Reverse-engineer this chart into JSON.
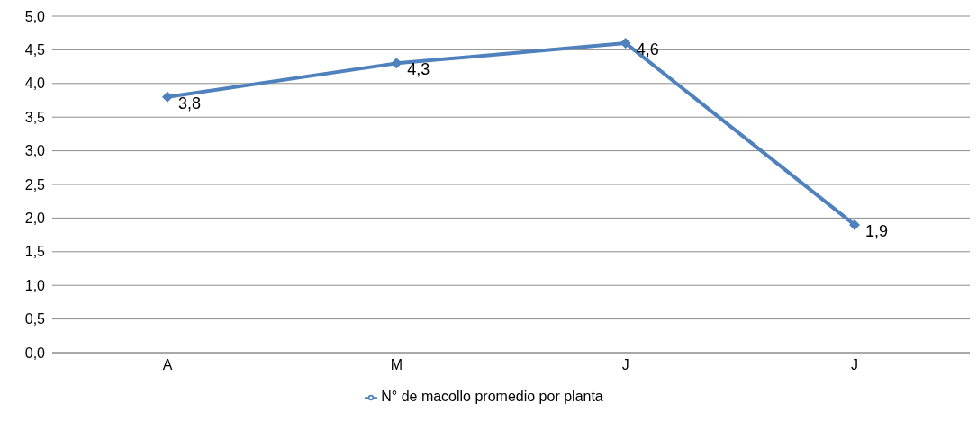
{
  "chart_data": {
    "type": "line",
    "categories": [
      "A",
      "M",
      "J",
      "J"
    ],
    "series": [
      {
        "name": "N° de macollo promedio por planta",
        "color": "#4f81bd",
        "values": [
          3.8,
          4.3,
          4.6,
          1.9
        ],
        "value_labels": [
          "3,8",
          "4,3",
          "4,6",
          "1,9"
        ]
      }
    ],
    "ylim": [
      0,
      5
    ],
    "yticks": [
      {
        "value": 0,
        "label": "0,0"
      },
      {
        "value": 0.5,
        "label": "0,5"
      },
      {
        "value": 1,
        "label": "1,0"
      },
      {
        "value": 1.5,
        "label": "1,5"
      },
      {
        "value": 2,
        "label": "2,0"
      },
      {
        "value": 2.5,
        "label": "2,5"
      },
      {
        "value": 3,
        "label": "3,0"
      },
      {
        "value": 3.5,
        "label": "3,5"
      },
      {
        "value": 4,
        "label": "4,0"
      },
      {
        "value": 4.5,
        "label": "4,5"
      },
      {
        "value": 5,
        "label": "5,0"
      }
    ],
    "grid": "y",
    "legend": "bottom",
    "marker": "diamond",
    "line_style": "solid"
  }
}
